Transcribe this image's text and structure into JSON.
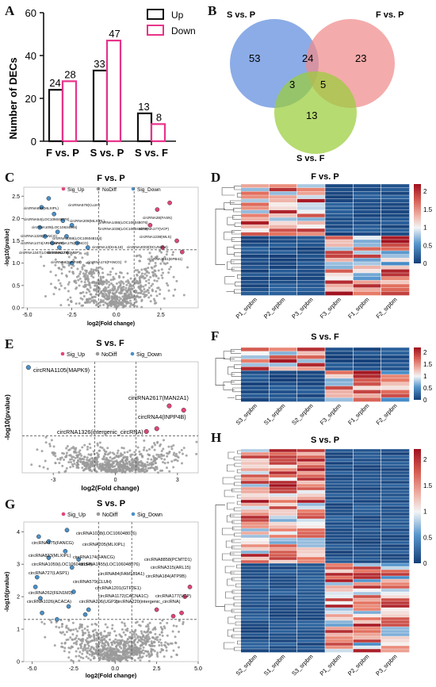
{
  "panels": {
    "A": "A",
    "B": "B",
    "C": "C",
    "D": "D",
    "E": "E",
    "F": "F",
    "G": "G",
    "H": "H"
  },
  "colors": {
    "up": "#e0457b",
    "down": "#4a90c8",
    "nodiff": "#9a9a9a",
    "bar_up": "#111111",
    "bar_down": "#e8338a",
    "venn_s_p": "#6b95e0",
    "venn_f_p": "#f08a8a",
    "venn_s_f": "#9acd3a"
  },
  "chart_data": [
    {
      "type": "bar",
      "ylabel": "Number of DECs",
      "categories": [
        "F vs. P",
        "S vs. P",
        "S vs. F"
      ],
      "series": [
        {
          "name": "Up",
          "values": [
            24,
            33,
            13
          ]
        },
        {
          "name": "Down",
          "values": [
            28,
            47,
            8
          ]
        }
      ],
      "ylim": [
        0,
        60
      ],
      "yticks": [
        "0",
        "20",
        "40",
        "60"
      ],
      "value_labels": {
        "up": [
          "24",
          "33",
          "13"
        ],
        "down": [
          "28",
          "47",
          "8"
        ]
      },
      "legend_placement": "top-right"
    },
    {
      "type": "venn",
      "sets": [
        {
          "name": "S vs. P"
        },
        {
          "name": "F vs. P"
        },
        {
          "name": "S vs. F"
        }
      ],
      "regions": {
        "only_s_p": "53",
        "only_f_p": "23",
        "only_s_f": "13",
        "s_p_f_p": "24",
        "s_p_s_f": "3",
        "f_p_s_f": "5"
      }
    },
    {
      "type": "scatter",
      "title": "F vs. P",
      "xlabel": "log2(Fold change)",
      "ylabel": "-log10(pvalue)",
      "legend": [
        "Sig_Up",
        "NoDiff",
        "Sig_Down"
      ],
      "xticks": [
        "-5.0",
        "-2.5",
        "0.0",
        "2.5"
      ],
      "yticks": [
        "0.0",
        "0.5",
        "1.0",
        "1.5",
        "2.0",
        "2.5"
      ],
      "xlim": [
        -5.2,
        4.6
      ],
      "ylim": [
        0,
        2.7
      ],
      "labels": [
        "circRNA833(MLXIPL)",
        "circRNA579(CLUH)",
        "circRNA54(LOC106048076)",
        "circRNA209(MLXIPL)",
        "circRNA1455(LOC106048076)",
        "circRNA28(FASN)",
        "circRNA109(LOC10634846)",
        "circRNA1038(LOC106048076)",
        "circRNA177(VCP)",
        "circRNA1329(FANCG)",
        "circRNA1059(LOC106048154)",
        "circRNA1238(WLS)",
        "circRNA1474(ARHGAP45)",
        "circRNA175(FANCG)",
        "circRNA13(KHL18)",
        "circRNA2003(DCUN1D4)",
        "circRNA1347(LOC106046174)",
        "circRNA227(DMBP)",
        "circRNA1161(EPB41)",
        "circRNA8(INPP4B)",
        "circRNA174(FANCG)"
      ],
      "points_up": [
        [
          2.3,
          2.2
        ],
        [
          3.0,
          2.35
        ],
        [
          1.9,
          1.85
        ],
        [
          3.4,
          1.5
        ],
        [
          2.6,
          1.35
        ],
        [
          3.7,
          1.25
        ]
      ],
      "points_down": [
        [
          -3.8,
          2.45
        ],
        [
          -4.2,
          2.25
        ],
        [
          -3.5,
          2.1
        ],
        [
          -3.0,
          1.95
        ],
        [
          -2.5,
          1.85
        ],
        [
          -4.3,
          1.8
        ],
        [
          -3.3,
          1.7
        ],
        [
          -2.8,
          1.6
        ],
        [
          -4.0,
          1.6
        ],
        [
          -3.6,
          1.45
        ],
        [
          -2.2,
          1.45
        ],
        [
          -3.2,
          1.35
        ],
        [
          -1.6,
          1.35
        ],
        [
          -2.5,
          1.0
        ]
      ]
    },
    {
      "type": "heatmap",
      "title": "F vs. P",
      "columns": [
        "P1_srpbm",
        "P2_srpbm",
        "P3_srpbm",
        "F3_srpbm",
        "F1_srpbm",
        "F2_srpbm"
      ],
      "colorbar_ticks": [
        "0",
        "0.5",
        "1",
        "1.5",
        "2"
      ],
      "range": [
        0,
        2.2
      ]
    },
    {
      "type": "scatter",
      "title": "S vs. F",
      "xlabel": "log2(Fold change)",
      "ylabel": "-log10(pvalue)",
      "legend": [
        "Sig_Up",
        "NoDiff",
        "Sig_Down"
      ],
      "xticks": [
        "-3",
        "0",
        "3"
      ],
      "xlim": [
        -4.5,
        4.0
      ],
      "ylim": [
        0,
        3.9
      ],
      "labels": [
        "circRNA1105(MAPK9)",
        "circRNA2617(MAN2A1)",
        "circRNA4(INPP4B)",
        "circRNA1326(intergenic_circRNA)"
      ],
      "points_up": [
        [
          3.3,
          2.2
        ],
        [
          2.0,
          1.55
        ],
        [
          2.6,
          2.35
        ],
        [
          1.5,
          1.45
        ]
      ],
      "points_down": [
        [
          -4.2,
          3.7
        ]
      ]
    },
    {
      "type": "heatmap",
      "title": "S vs. F",
      "columns": [
        "S3_srpbm",
        "S1_srpbm",
        "S2_srpbm",
        "F3_srpbm",
        "F1_srpbm",
        "F2_srpbm"
      ],
      "colorbar_ticks": [
        "0",
        "0.5",
        "1",
        "1.5",
        "2"
      ],
      "range": [
        0,
        2.2
      ]
    },
    {
      "type": "scatter",
      "title": "S vs. P",
      "xlabel": "log2(Fold change)",
      "ylabel": "-log10(pvalue)",
      "legend": [
        "Sig_Up",
        "NoDiff",
        "Sig_Down"
      ],
      "xticks": [
        "-5.0",
        "-2.5",
        "0.0",
        "2.5",
        "5.0"
      ],
      "yticks": [
        "0",
        "1",
        "2",
        "3",
        "4"
      ],
      "xlim": [
        -5.5,
        5.0
      ],
      "ylim": [
        0,
        4.3
      ],
      "labels": [
        "circRNA1038(LOC106048076)",
        "circRNA175(FANCG)",
        "circRNA205(MLXIPL)",
        "circRNA833(MLXIPL)",
        "circRNA174(FANCG)",
        "circRNA1455(LOC106048076)",
        "circRNA8858(PCMTD1)",
        "circRNA1059(LOC106048154)",
        "circRNA315(ARL15)",
        "circRNA727(LASP1)",
        "circRNA84(FAM189A1)",
        "circRNA184(ATP9B)",
        "circRNA579(CLUH)",
        "circRNA1201(GTF2E1)",
        "circRNA262(FEN1M3)",
        "circRNA1172(CACNA1C)",
        "circRNA177(VCP)",
        "circRNA1026(ACACA)",
        "circRNA206(UGP2)",
        "circRNA220(intergenic_circRNA)"
      ],
      "points_up": [
        [
          4.2,
          2.0
        ],
        [
          4.5,
          2.3
        ],
        [
          2.5,
          1.6
        ],
        [
          3.5,
          1.4
        ],
        [
          4.0,
          1.5
        ]
      ],
      "points_down": [
        [
          -2.9,
          4.05
        ],
        [
          -4.6,
          3.85
        ],
        [
          -4.0,
          3.7
        ],
        [
          -3.0,
          3.4
        ],
        [
          -2.2,
          3.15
        ],
        [
          -4.0,
          3.2
        ],
        [
          -2.6,
          2.9
        ],
        [
          -4.7,
          2.6
        ],
        [
          -4.8,
          2.3
        ],
        [
          -2.5,
          2.15
        ],
        [
          -4.5,
          1.95
        ],
        [
          -4.4,
          1.5
        ],
        [
          -2.8,
          1.7
        ],
        [
          -3.5,
          1.3
        ],
        [
          -1.8,
          1.45
        ],
        [
          -1.6,
          1.6
        ]
      ]
    },
    {
      "type": "heatmap",
      "title": "S vs. P",
      "columns": [
        "S2_srpbm",
        "S1_srpbm",
        "S3_srpbm",
        "P1_srpbm",
        "P2_srpbm",
        "P3_srpbm"
      ],
      "colorbar_ticks": [
        "0",
        "0.5",
        "1",
        "1.5",
        "2"
      ],
      "range": [
        0,
        2.2
      ]
    }
  ]
}
